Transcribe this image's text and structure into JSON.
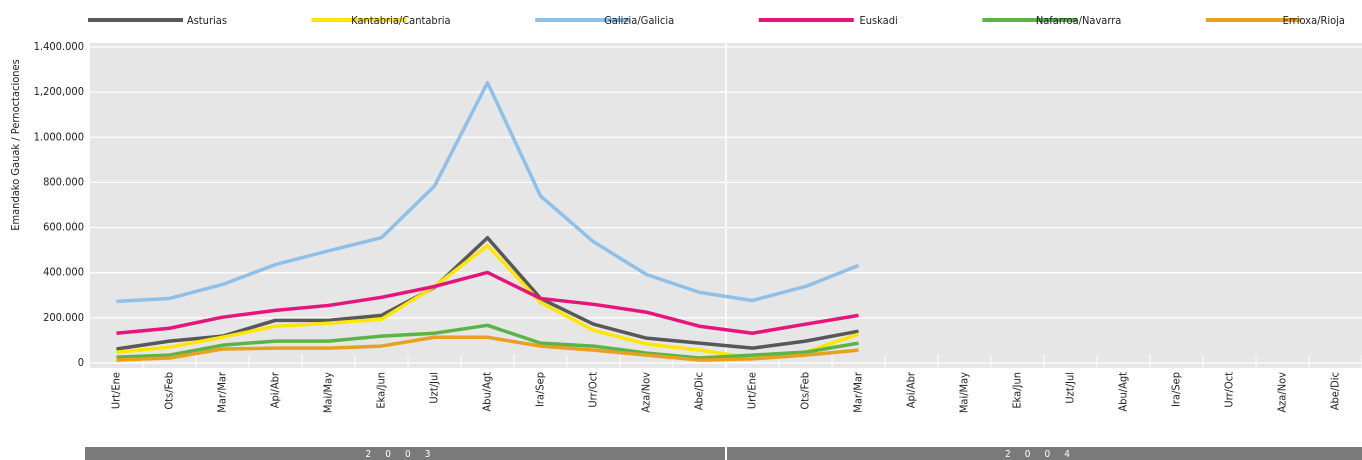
{
  "chart_data": {
    "type": "line",
    "y_label": "Emandako Gauak / Pernoctaciones",
    "categories": [
      "Urt/Ene",
      "Ots/Feb",
      "Mar/Mar",
      "Api/Abr",
      "Mai/May",
      "Eka/Jun",
      "Uzt/Jul",
      "Abu/Agt",
      "Ira/Sep",
      "Urr/Oct",
      "Aza/Nov",
      "Abe/Dic",
      "Urt/Ene",
      "Ots/Feb",
      "Mar/Mar",
      "Api/Abr",
      "Mai/May",
      "Eka/Jun",
      "Uzt/Jul",
      "Abu/Agt",
      "Ira/Sep",
      "Urr/Oct",
      "Aza/Nov",
      "Abe/Dic"
    ],
    "years": [
      "2003",
      "2004"
    ],
    "ylim": [
      0,
      1400000
    ],
    "yticks": [
      0,
      {
        "value": 200000,
        "label": "200.000"
      },
      {
        "value": 400000,
        "label": "400.000"
      },
      {
        "value": 600000,
        "label": "600.000"
      },
      {
        "value": 800000,
        "label": "800.000"
      },
      {
        "value": 1000000,
        "label": "1.000.000"
      },
      {
        "value": 1200000,
        "label": "1,200,000"
      },
      {
        "value": 1400000,
        "label": "1.400.000"
      }
    ],
    "grid": true,
    "series": [
      {
        "name": "Asturias",
        "color": "#58585a",
        "values": [
          62000,
          97000,
          119000,
          189000,
          189000,
          211000,
          335000,
          555000,
          286000,
          172000,
          110000,
          88000,
          66000,
          97000,
          141000,
          null,
          null,
          null,
          null,
          null,
          null,
          null,
          null,
          null
        ]
      },
      {
        "name": "Kantabria/Cantabria",
        "color": "#ffe600",
        "values": [
          48000,
          70000,
          114000,
          163000,
          176000,
          194000,
          339000,
          520000,
          269000,
          145000,
          84000,
          57000,
          22000,
          48000,
          128000,
          null,
          null,
          null,
          null,
          null,
          null,
          null,
          null,
          null
        ]
      },
      {
        "name": "Galizia/Galicia",
        "color": "#8ec0e8",
        "values": [
          273000,
          286000,
          348000,
          436000,
          497000,
          555000,
          784000,
          1242000,
          740000,
          537000,
          392000,
          313000,
          277000,
          339000,
          432000,
          null,
          null,
          null,
          null,
          null,
          null,
          null,
          null,
          null
        ]
      },
      {
        "name": "Euskadi",
        "color": "#e5157d",
        "values": [
          132000,
          154000,
          203000,
          233000,
          255000,
          291000,
          339000,
          401000,
          286000,
          260000,
          225000,
          163000,
          132000,
          172000,
          211000,
          null,
          null,
          null,
          null,
          null,
          null,
          null,
          null,
          null
        ]
      },
      {
        "name": "Nafarroa/Navarra",
        "color": "#5bb446",
        "values": [
          26000,
          35000,
          79000,
          97000,
          97000,
          119000,
          132000,
          167000,
          88000,
          75000,
          44000,
          22000,
          35000,
          48000,
          88000,
          null,
          null,
          null,
          null,
          null,
          null,
          null,
          null,
          null
        ]
      },
      {
        "name": "Errioxa/Rioja",
        "color": "#e8a01e",
        "values": [
          13000,
          22000,
          62000,
          66000,
          66000,
          75000,
          114000,
          114000,
          75000,
          57000,
          35000,
          13000,
          18000,
          35000,
          57000,
          null,
          null,
          null,
          null,
          null,
          null,
          null,
          null,
          null
        ]
      }
    ]
  }
}
